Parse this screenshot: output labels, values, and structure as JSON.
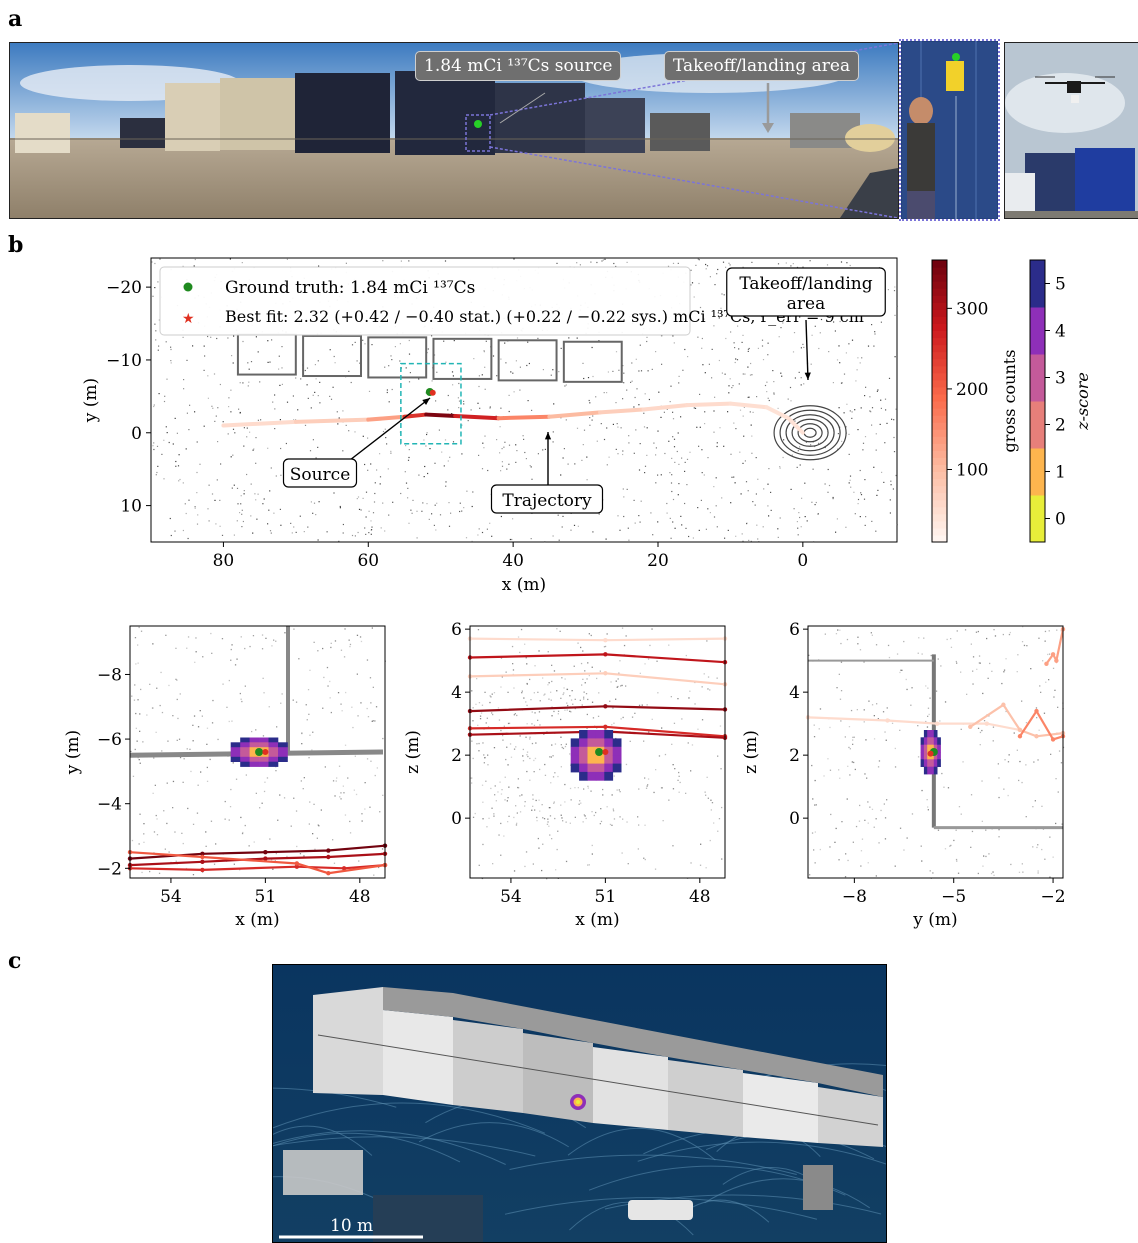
{
  "panels": {
    "a": "a",
    "b": "b",
    "c": "c"
  },
  "panel_a": {
    "source_callout": "1.84 mCi ¹³⁷Cs source",
    "takeoff_callout": "Takeoff/landing area"
  },
  "panel_c": {
    "scale_bar_label": "10 m"
  },
  "colors": {
    "ground_truth": "#1f8a1f",
    "best_fit": "#e03020",
    "roi_box": "#22b5b5",
    "counts_cmap": [
      "#fff5f0",
      "#fcbba1",
      "#fb6a4a",
      "#cb181d",
      "#67000d"
    ],
    "zscore_cmap": [
      "#e8ee3a",
      "#fdb54e",
      "#e77f7a",
      "#c45a9a",
      "#8e2fb8",
      "#2b2c8a"
    ]
  },
  "chart_data": [
    {
      "type": "scatter",
      "id": "overview",
      "xlabel": "x (m)",
      "ylabel": "y (m)",
      "xlim": [
        90,
        -13
      ],
      "ylim": [
        15,
        -24
      ],
      "xticks": [
        80,
        60,
        40,
        20,
        0
      ],
      "yticks": [
        -20,
        -10,
        0,
        10
      ],
      "legend": {
        "position": "top-left",
        "entries": [
          "Ground truth: 1.84 mCi ¹³⁷Cs",
          "Best fit: 2.32 (+0.42 / −0.40 stat.) (+0.22 / −0.22 sys.) mCi ¹³⁷Cs, r_err = 9 cm"
        ]
      },
      "annotations": [
        "Takeoff/landing area",
        "Source",
        "Trajectory"
      ],
      "ground_truth": {
        "x": 51.5,
        "y": -5.6
      },
      "best_fit": {
        "x": 51.1,
        "y": -5.5
      },
      "roi": {
        "x": [
          55.5,
          47.2
        ],
        "y": [
          -9.5,
          1.5
        ]
      },
      "trajectory": {
        "x": [
          80,
          70,
          60,
          55,
          52,
          48,
          42,
          35,
          28,
          22,
          16,
          10,
          5,
          2,
          0
        ],
        "y": [
          -1.0,
          -1.5,
          -1.8,
          -2.2,
          -2.5,
          -2.3,
          -2.0,
          -2.2,
          -2.8,
          -3.2,
          -3.8,
          -4.0,
          -3.5,
          -2.0,
          0
        ],
        "counts": [
          40,
          60,
          120,
          240,
          340,
          260,
          150,
          90,
          60,
          45,
          40,
          35,
          30,
          30,
          30
        ]
      },
      "colorbars": [
        {
          "label": "gross counts",
          "ticks": [
            100,
            200,
            300
          ],
          "range": [
            10,
            360
          ]
        },
        {
          "label": "z-score",
          "ticks": [
            0,
            1,
            2,
            3,
            4,
            5
          ],
          "range": [
            -0.5,
            5.5
          ]
        }
      ]
    },
    {
      "type": "heatmap",
      "id": "zoom-xy",
      "xlabel": "x (m)",
      "ylabel": "y (m)",
      "xlim": [
        55.3,
        47.2
      ],
      "ylim": [
        -1.7,
        -9.5
      ],
      "xticks": [
        54,
        51,
        48
      ],
      "yticks": [
        -8,
        -6,
        -4,
        -2
      ],
      "ground_truth": {
        "x": 51.2,
        "y": -5.6
      },
      "best_fit": {
        "x": 51.0,
        "y": -5.6
      },
      "zscore_blob": {
        "center": [
          51.2,
          -5.6
        ],
        "extent_x": 1.8,
        "extent_y": 0.9
      },
      "trajectories": [
        {
          "x": [
            55.3,
            53,
            51,
            49,
            47.2
          ],
          "y": [
            -2.3,
            -2.45,
            -2.5,
            -2.55,
            -2.7
          ],
          "counts": 350
        },
        {
          "x": [
            55.3,
            53,
            51,
            49,
            47.2
          ],
          "y": [
            -2.1,
            -2.2,
            -2.3,
            -2.35,
            -2.45
          ],
          "counts": 300
        },
        {
          "x": [
            55.3,
            53,
            50,
            48.5,
            47.2
          ],
          "y": [
            -2.0,
            -1.95,
            -2.05,
            -2.0,
            -2.1
          ],
          "counts": 250
        },
        {
          "x": [
            55.3,
            53,
            50,
            49,
            47.2
          ],
          "y": [
            -2.5,
            -2.35,
            -2.15,
            -1.85,
            -2.1
          ],
          "counts": 200
        }
      ]
    },
    {
      "type": "heatmap",
      "id": "zoom-xz",
      "xlabel": "x (m)",
      "ylabel": "z (m)",
      "xlim": [
        55.3,
        47.2
      ],
      "ylim": [
        -1.9,
        6.1
      ],
      "xticks": [
        54,
        51,
        48
      ],
      "yticks": [
        0,
        2,
        4,
        6
      ],
      "ground_truth": {
        "x": 51.2,
        "z": 2.1
      },
      "best_fit": {
        "x": 51.0,
        "z": 2.1
      },
      "zscore_blob": {
        "center": [
          51.3,
          2.0
        ],
        "extent_x": 1.6,
        "extent_z": 1.6
      },
      "trajectories": [
        {
          "x": [
            55.3,
            51,
            47.2
          ],
          "z": [
            5.7,
            5.65,
            5.7
          ],
          "counts": 40
        },
        {
          "x": [
            55.3,
            51,
            47.2
          ],
          "z": [
            5.1,
            5.2,
            4.95
          ],
          "counts": 280
        },
        {
          "x": [
            55.3,
            51,
            47.2
          ],
          "z": [
            4.5,
            4.6,
            4.25
          ],
          "counts": 60
        },
        {
          "x": [
            55.3,
            51,
            47.2
          ],
          "z": [
            3.4,
            3.55,
            3.45
          ],
          "counts": 320
        },
        {
          "x": [
            55.3,
            51,
            47.2
          ],
          "z": [
            2.85,
            2.9,
            2.6
          ],
          "counts": 250
        },
        {
          "x": [
            55.3,
            51,
            47.2
          ],
          "z": [
            2.65,
            2.75,
            2.55
          ],
          "counts": 300
        }
      ]
    },
    {
      "type": "heatmap",
      "id": "zoom-yz",
      "xlabel": "y (m)",
      "ylabel": "z (m)",
      "xlim": [
        -9.4,
        -1.7
      ],
      "ylim": [
        -1.9,
        6.1
      ],
      "xticks": [
        -8,
        -5,
        -2
      ],
      "yticks": [
        0,
        2,
        4,
        6
      ],
      "ground_truth": {
        "y": -5.6,
        "z": 2.1
      },
      "best_fit": {
        "y": -5.7,
        "z": 2.05
      },
      "zscore_blob": {
        "center": [
          -5.7,
          2.1
        ],
        "extent_y": 0.6,
        "extent_z": 1.4
      },
      "trajectories": [
        {
          "y": [
            -9.4,
            -7,
            -5.5,
            -4,
            -3
          ],
          "z": [
            3.2,
            3.1,
            3.0,
            3.0,
            2.8
          ],
          "counts": 40
        },
        {
          "y": [
            -4.5,
            -3.5,
            -3.0,
            -2.5,
            -1.7
          ],
          "z": [
            2.9,
            3.6,
            2.8,
            2.6,
            2.7
          ],
          "counts": 80
        },
        {
          "y": [
            -3.0,
            -2.5,
            -2.0,
            -1.7
          ],
          "z": [
            2.6,
            3.4,
            2.5,
            2.6
          ],
          "counts": 150
        },
        {
          "y": [
            -2.2,
            -2.0,
            -1.9,
            -1.7
          ],
          "z": [
            4.9,
            5.2,
            5.0,
            6.0
          ],
          "counts": 120
        }
      ]
    }
  ]
}
